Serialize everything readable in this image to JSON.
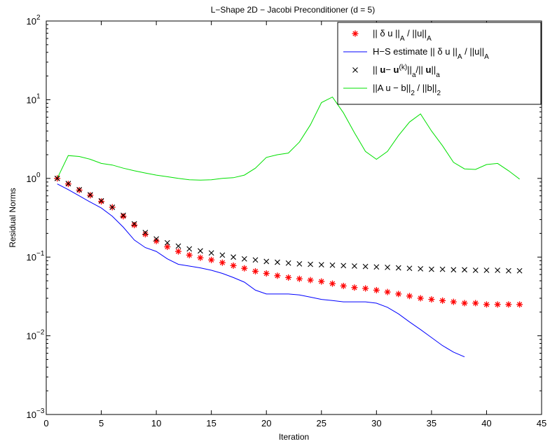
{
  "chart_data": {
    "type": "line",
    "title": "L−Shape  2D − Jacobi Preconditioner (d = 5)",
    "xlabel": "Iteration",
    "ylabel": "Residual Norms",
    "xlim": [
      0,
      45
    ],
    "ylim": [
      0.001,
      100
    ],
    "yscale": "log",
    "grid": false,
    "legend_position": "top-right",
    "x_ticks": [
      0,
      5,
      10,
      15,
      20,
      25,
      30,
      35,
      40,
      45
    ],
    "y_ticks": [
      {
        "value": 0.001,
        "base": "10",
        "exp": "−3"
      },
      {
        "value": 0.01,
        "base": "10",
        "exp": "−2"
      },
      {
        "value": 0.1,
        "base": "10",
        "exp": "−1"
      },
      {
        "value": 1,
        "base": "10",
        "exp": "0"
      },
      {
        "value": 10,
        "base": "10",
        "exp": "1"
      },
      {
        "value": 100,
        "base": "10",
        "exp": "2"
      }
    ],
    "series": [
      {
        "name": "|| δ u ||_A / ||u||_A",
        "marker": "asterisk",
        "color": "#ff0000",
        "x": [
          1,
          2,
          3,
          4,
          5,
          6,
          7,
          8,
          9,
          10,
          11,
          12,
          13,
          14,
          15,
          16,
          17,
          18,
          19,
          20,
          21,
          22,
          23,
          24,
          25,
          26,
          27,
          28,
          29,
          30,
          31,
          32,
          33,
          34,
          35,
          36,
          37,
          38,
          39,
          40,
          41,
          42,
          43
        ],
        "y": [
          1.0,
          0.85,
          0.71,
          0.61,
          0.51,
          0.43,
          0.33,
          0.255,
          0.195,
          0.16,
          0.135,
          0.118,
          0.106,
          0.098,
          0.092,
          0.085,
          0.078,
          0.072,
          0.066,
          0.062,
          0.058,
          0.055,
          0.053,
          0.051,
          0.049,
          0.046,
          0.043,
          0.041,
          0.04,
          0.038,
          0.036,
          0.034,
          0.032,
          0.03,
          0.029,
          0.028,
          0.027,
          0.026,
          0.026,
          0.025,
          0.025,
          0.025,
          0.025
        ]
      },
      {
        "name": "H−S estimate || δ u ||_A / ||u||_A",
        "marker": "line",
        "color": "#0000ff",
        "x": [
          1,
          2,
          3,
          4,
          5,
          6,
          7,
          8,
          9,
          10,
          11,
          12,
          13,
          14,
          15,
          16,
          17,
          18,
          19,
          20,
          21,
          22,
          23,
          24,
          25,
          26,
          27,
          28,
          29,
          30,
          31,
          32,
          33,
          34,
          35,
          36,
          37,
          38
        ],
        "y": [
          0.85,
          0.72,
          0.6,
          0.5,
          0.42,
          0.33,
          0.24,
          0.165,
          0.132,
          0.118,
          0.095,
          0.081,
          0.077,
          0.073,
          0.068,
          0.062,
          0.055,
          0.048,
          0.038,
          0.034,
          0.034,
          0.034,
          0.033,
          0.031,
          0.029,
          0.028,
          0.027,
          0.027,
          0.027,
          0.026,
          0.023,
          0.019,
          0.015,
          0.012,
          0.0095,
          0.0075,
          0.0062,
          0.0054
        ]
      },
      {
        "name": "|| u− u^(k)||_a/|| u||_a",
        "marker": "x",
        "color": "#000000",
        "x": [
          1,
          2,
          3,
          4,
          5,
          6,
          7,
          8,
          9,
          10,
          11,
          12,
          13,
          14,
          15,
          16,
          17,
          18,
          19,
          20,
          21,
          22,
          23,
          24,
          25,
          26,
          27,
          28,
          29,
          30,
          31,
          32,
          33,
          34,
          35,
          36,
          37,
          38,
          39,
          40,
          41,
          42,
          43
        ],
        "y": [
          1.0,
          0.86,
          0.72,
          0.62,
          0.52,
          0.43,
          0.34,
          0.265,
          0.205,
          0.17,
          0.152,
          0.138,
          0.127,
          0.12,
          0.113,
          0.106,
          0.1,
          0.095,
          0.092,
          0.088,
          0.086,
          0.084,
          0.082,
          0.081,
          0.08,
          0.079,
          0.078,
          0.077,
          0.076,
          0.075,
          0.074,
          0.073,
          0.072,
          0.071,
          0.07,
          0.07,
          0.069,
          0.069,
          0.068,
          0.068,
          0.068,
          0.067,
          0.067
        ]
      },
      {
        "name": "||A u − b||_2 / ||b||_2",
        "marker": "line",
        "color": "#00e000",
        "x": [
          1,
          2,
          3,
          4,
          5,
          6,
          7,
          8,
          9,
          10,
          11,
          12,
          13,
          14,
          15,
          16,
          17,
          18,
          19,
          20,
          21,
          22,
          23,
          24,
          25,
          26,
          27,
          28,
          29,
          30,
          31,
          32,
          33,
          34,
          35,
          36,
          37,
          38,
          39,
          40,
          41,
          42,
          43
        ],
        "y": [
          1.0,
          1.95,
          1.9,
          1.75,
          1.55,
          1.48,
          1.35,
          1.25,
          1.17,
          1.1,
          1.05,
          1.0,
          0.96,
          0.95,
          0.96,
          1.0,
          1.02,
          1.1,
          1.35,
          1.85,
          2.0,
          2.1,
          2.9,
          4.8,
          9.2,
          10.8,
          6.8,
          3.8,
          2.2,
          1.75,
          2.2,
          3.5,
          5.2,
          6.6,
          4.0,
          2.6,
          1.6,
          1.32,
          1.3,
          1.5,
          1.55,
          1.25,
          0.98
        ]
      }
    ]
  }
}
